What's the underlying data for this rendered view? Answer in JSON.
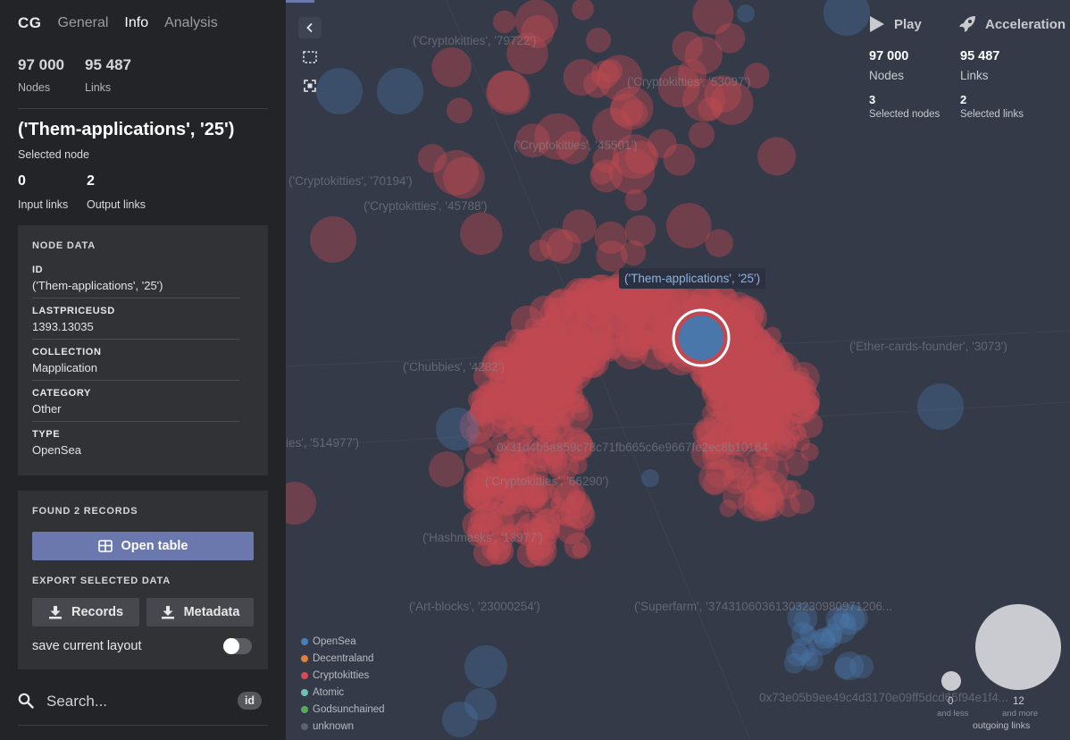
{
  "sidebar": {
    "logo": "CG",
    "tabs": [
      {
        "label": "General",
        "active": false
      },
      {
        "label": "Info",
        "active": true
      },
      {
        "label": "Analysis",
        "active": false
      }
    ],
    "stats": {
      "nodes_value": "97 000",
      "nodes_label": "Nodes",
      "links_value": "95 487",
      "links_label": "Links"
    },
    "selected": {
      "title": "('Them-applications', '25')",
      "subtitle": "Selected node",
      "input_links_value": "0",
      "input_links_label": "Input links",
      "output_links_value": "2",
      "output_links_label": "Output links"
    },
    "node_data": {
      "heading": "NODE DATA",
      "fields": [
        {
          "label": "ID",
          "value": "('Them-applications', '25')"
        },
        {
          "label": "LASTPRICEUSD",
          "value": "1393.13035"
        },
        {
          "label": "COLLECTION",
          "value": "Mapplication"
        },
        {
          "label": "CATEGORY",
          "value": "Other"
        },
        {
          "label": "TYPE",
          "value": "OpenSea"
        }
      ]
    },
    "records": {
      "heading": "FOUND 2 RECORDS",
      "open_table_label": "Open table",
      "export_heading": "EXPORT SELECTED DATA",
      "records_button": "Records",
      "metadata_button": "Metadata",
      "save_layout_label": "save current layout",
      "save_layout_on": false
    },
    "search": {
      "placeholder": "Search...",
      "badge": "id"
    }
  },
  "canvas": {
    "selected_label": "('Them-applications', '25')",
    "node_labels": [
      "('Cryptokitties', '79722')",
      "('Cryptokitties', '53097')",
      "('Cryptokitties', '45501')",
      "('Cryptokitties', '70194')",
      "('Cryptokitties', '45788')",
      "('Ether-cards-founder', '3073')",
      "('Chubbies', '4282')",
      "ies', '514977')",
      "0x31d4b5a859c78c71fb665c6e9667fe2ec8b10164",
      "('Cryptokitties', '66290')",
      "('Hashmasks', '13977')",
      "('Art-blocks', '23000254')",
      "('Superfarm', '37431060361303230980971206...",
      "0x73e05b9ee49c4d3170e09ff5dcd65f94e1f4..."
    ],
    "right_panel": {
      "play_label": "Play",
      "acceleration_label": "Acceleration",
      "nodes_value": "97 000",
      "nodes_label": "Nodes",
      "links_value": "95 487",
      "links_label": "Links",
      "selected_nodes_value": "3",
      "selected_nodes_label": "Selected nodes",
      "selected_links_value": "2",
      "selected_links_label": "Selected links"
    },
    "legend": [
      {
        "label": "OpenSea",
        "color": "#4a7fb8"
      },
      {
        "label": "Decentraland",
        "color": "#e0803a"
      },
      {
        "label": "Cryptokitties",
        "color": "#d84a55"
      },
      {
        "label": "Atomic",
        "color": "#6fc0b0"
      },
      {
        "label": "Godsunchained",
        "color": "#5aa85a"
      },
      {
        "label": "unknown",
        "color": "#5c6270"
      }
    ],
    "size_legend": {
      "min_value": "0",
      "min_label": "and less",
      "max_value": "12",
      "max_label": "and more",
      "caption": "outgoing links"
    },
    "colors": {
      "accent": "#6b78ae",
      "node_red": "#c04a52",
      "node_blue": "#4a77ab",
      "background": "#343a48"
    }
  }
}
